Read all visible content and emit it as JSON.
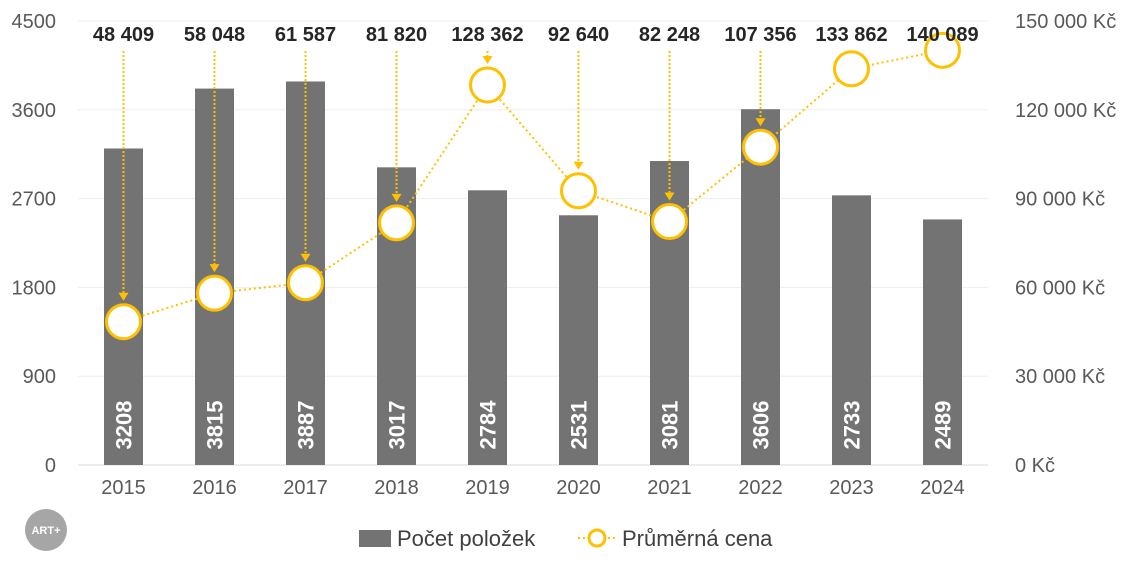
{
  "chart_data": {
    "type": "bar",
    "categories": [
      "2015",
      "2016",
      "2017",
      "2018",
      "2019",
      "2020",
      "2021",
      "2022",
      "2023",
      "2024"
    ],
    "series": [
      {
        "name": "Počet položek",
        "type": "bar",
        "axis": "left",
        "values": [
          3208,
          3815,
          3887,
          3017,
          2784,
          2531,
          3081,
          3606,
          2733,
          2489
        ],
        "labels": [
          "3208",
          "3815",
          "3887",
          "3017",
          "2784",
          "2531",
          "3081",
          "3606",
          "2733",
          "2489"
        ],
        "color": "#737373"
      },
      {
        "name": "Průměrná cena",
        "type": "line",
        "axis": "right",
        "values": [
          48409,
          58048,
          61587,
          81820,
          128362,
          92640,
          82248,
          107356,
          133862,
          140089
        ],
        "labels": [
          "48 409",
          "58 048",
          "61 587",
          "81 820",
          "128 362",
          "92 640",
          "82 248",
          "107 356",
          "133 862",
          "140 089"
        ],
        "color": "#FFC000"
      }
    ],
    "y_left": {
      "ylim": [
        0,
        4500
      ],
      "ticks": [
        "0",
        "900",
        "1800",
        "2700",
        "3600",
        "4500"
      ]
    },
    "y_right": {
      "ylim": [
        0,
        150000
      ],
      "ticks": [
        "0 Kč",
        "30 000 Kč",
        "60 000 Kč",
        "90 000 Kč",
        "120 000 Kč",
        "150 000 Kč"
      ]
    },
    "grid": true,
    "legend_position": "bottom",
    "title": "",
    "xlabel": "",
    "ylabel": ""
  },
  "logo": {
    "text": "ART+"
  }
}
